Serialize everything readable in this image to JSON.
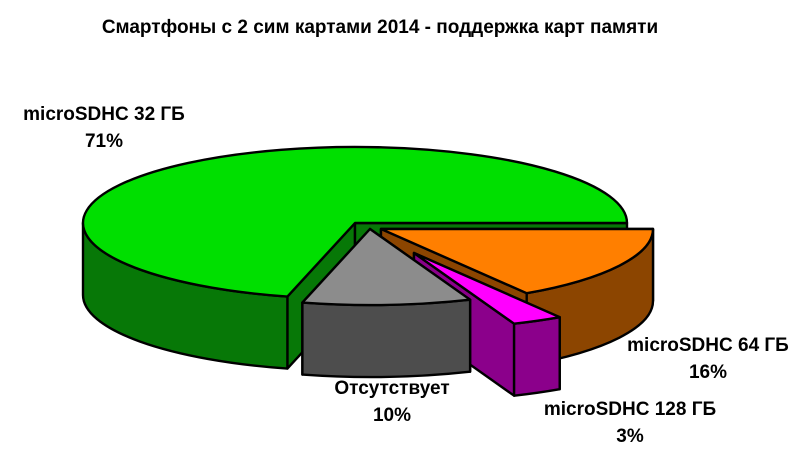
{
  "title": "Смартфоны с 2 сим картами 2014 - поддержка карт памяти",
  "chart_data": {
    "type": "pie",
    "style": "3d-exploded",
    "title": "Смартфоны с 2 сим картами 2014 - поддержка карт памяти",
    "unit": "%",
    "legend_position": "none",
    "background": "#FFFFFF",
    "outline_color": "#000000",
    "total": 100,
    "slices": [
      {
        "label": "microSDHC 64 ГБ",
        "value": 16,
        "pct_label": "16%",
        "color_top": "#FF7F00",
        "color_side": "#8C4500"
      },
      {
        "label": "microSDHC 128 ГБ",
        "value": 3,
        "pct_label": "3%",
        "color_top": "#FF00FF",
        "color_side": "#8B008B"
      },
      {
        "label": "Отсутствует",
        "value": 10,
        "pct_label": "10%",
        "color_top": "#8C8C8C",
        "color_side": "#4D4D4D"
      },
      {
        "label": "microSDHC 32 ГБ",
        "value": 71,
        "pct_label": "71%",
        "color_top": "#00DF00",
        "color_side": "#077807"
      }
    ]
  }
}
